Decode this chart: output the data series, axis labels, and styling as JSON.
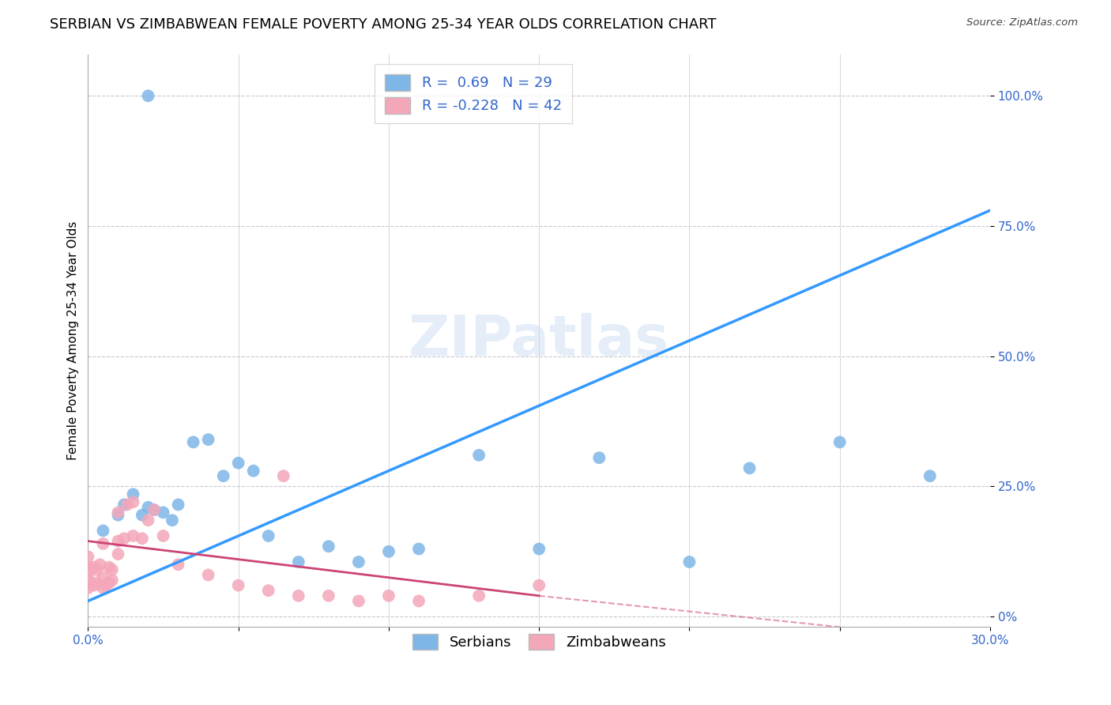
{
  "title": "SERBIAN VS ZIMBABWEAN FEMALE POVERTY AMONG 25-34 YEAR OLDS CORRELATION CHART",
  "source": "Source: ZipAtlas.com",
  "ylabel": "Female Poverty Among 25-34 Year Olds",
  "xlim": [
    0.0,
    0.3
  ],
  "ylim": [
    -0.02,
    1.08
  ],
  "serbian_R": 0.69,
  "serbian_N": 29,
  "zimbabwean_R": -0.228,
  "zimbabwean_N": 42,
  "serbian_color": "#7EB6E8",
  "zimbabwean_color": "#F4A7B9",
  "regression_serbian_color": "#3399FF",
  "regression_zimbabwean_color": "#CC4477",
  "background_color": "#FFFFFF",
  "watermark_text": "ZIPatlas",
  "serbian_x": [
    0.005,
    0.01,
    0.012,
    0.015,
    0.018,
    0.02,
    0.022,
    0.025,
    0.028,
    0.03,
    0.035,
    0.04,
    0.045,
    0.05,
    0.055,
    0.06,
    0.07,
    0.08,
    0.09,
    0.1,
    0.11,
    0.13,
    0.15,
    0.17,
    0.2,
    0.22,
    0.25,
    0.28,
    0.02
  ],
  "serbian_y": [
    0.165,
    0.195,
    0.215,
    0.235,
    0.195,
    0.21,
    0.205,
    0.2,
    0.185,
    0.215,
    0.335,
    0.34,
    0.27,
    0.295,
    0.28,
    0.155,
    0.105,
    0.135,
    0.105,
    0.125,
    0.13,
    0.31,
    0.13,
    0.305,
    0.105,
    0.285,
    0.335,
    0.27,
    1.0
  ],
  "zimbabwean_x": [
    0.0,
    0.0,
    0.0,
    0.0,
    0.0,
    0.0,
    0.002,
    0.002,
    0.003,
    0.003,
    0.004,
    0.005,
    0.005,
    0.005,
    0.006,
    0.007,
    0.007,
    0.008,
    0.008,
    0.01,
    0.01,
    0.01,
    0.012,
    0.013,
    0.015,
    0.015,
    0.018,
    0.02,
    0.022,
    0.025,
    0.03,
    0.04,
    0.05,
    0.06,
    0.065,
    0.07,
    0.08,
    0.09,
    0.1,
    0.11,
    0.13,
    0.15
  ],
  "zimbabwean_y": [
    0.055,
    0.07,
    0.08,
    0.09,
    0.095,
    0.115,
    0.06,
    0.095,
    0.065,
    0.09,
    0.1,
    0.055,
    0.075,
    0.14,
    0.06,
    0.065,
    0.095,
    0.07,
    0.09,
    0.12,
    0.145,
    0.2,
    0.15,
    0.215,
    0.155,
    0.22,
    0.15,
    0.185,
    0.205,
    0.155,
    0.1,
    0.08,
    0.06,
    0.05,
    0.27,
    0.04,
    0.04,
    0.03,
    0.04,
    0.03,
    0.04,
    0.06
  ],
  "yticks": [
    0.0,
    0.25,
    0.5,
    0.75,
    1.0
  ],
  "ytick_labels": [
    "0%",
    "25.0%",
    "50.0%",
    "75.0%",
    "100.0%"
  ],
  "xticks": [
    0.0,
    0.05,
    0.1,
    0.15,
    0.2,
    0.25,
    0.3
  ],
  "xtick_labels": [
    "0.0%",
    "",
    "",
    "",
    "",
    "",
    "30.0%"
  ],
  "grid_color": "#C8C8D0",
  "title_fontsize": 13,
  "axis_label_fontsize": 11,
  "tick_fontsize": 11,
  "legend_fontsize": 13,
  "tick_color": "#3366CC"
}
